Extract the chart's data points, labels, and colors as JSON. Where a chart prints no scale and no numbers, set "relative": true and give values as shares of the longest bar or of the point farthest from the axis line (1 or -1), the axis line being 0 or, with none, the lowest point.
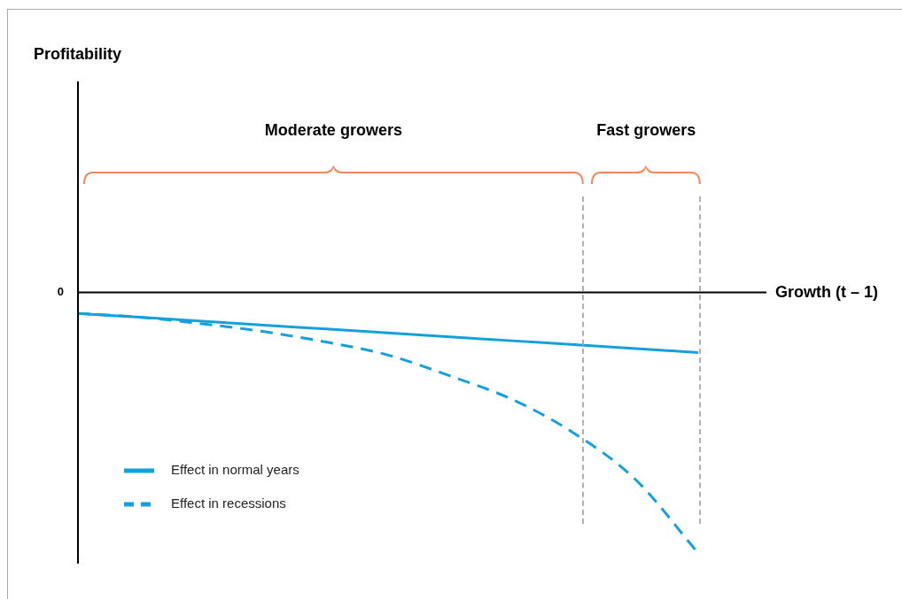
{
  "chart_data": {
    "type": "line",
    "relative": true,
    "xlabel": "Growth (t – 1)",
    "categories": [
      null,
      null,
      null,
      null,
      null,
      null,
      null,
      null,
      null,
      null,
      null
    ],
    "series": [
      {
        "name": "Effect in normal years",
        "color": "#14a0de",
        "line_style": "solid",
        "values": [
          -0.08,
          -0.095,
          -0.11,
          -0.125,
          -0.14,
          -0.155,
          -0.17,
          -0.185,
          -0.2,
          -0.215,
          -0.23
        ]
      },
      {
        "name": "Effect in recessions",
        "color": "#14a0de",
        "line_style": "dashed",
        "values": [
          -0.08,
          -0.095,
          -0.12,
          -0.15,
          -0.19,
          -0.24,
          -0.32,
          -0.41,
          -0.54,
          -0.72,
          -1
        ]
      }
    ],
    "annotations": [
      "Profitability",
      "0",
      "Moderate growers",
      "Fast growers"
    ],
    "legend": "bottom left",
    "marker": "none"
  }
}
